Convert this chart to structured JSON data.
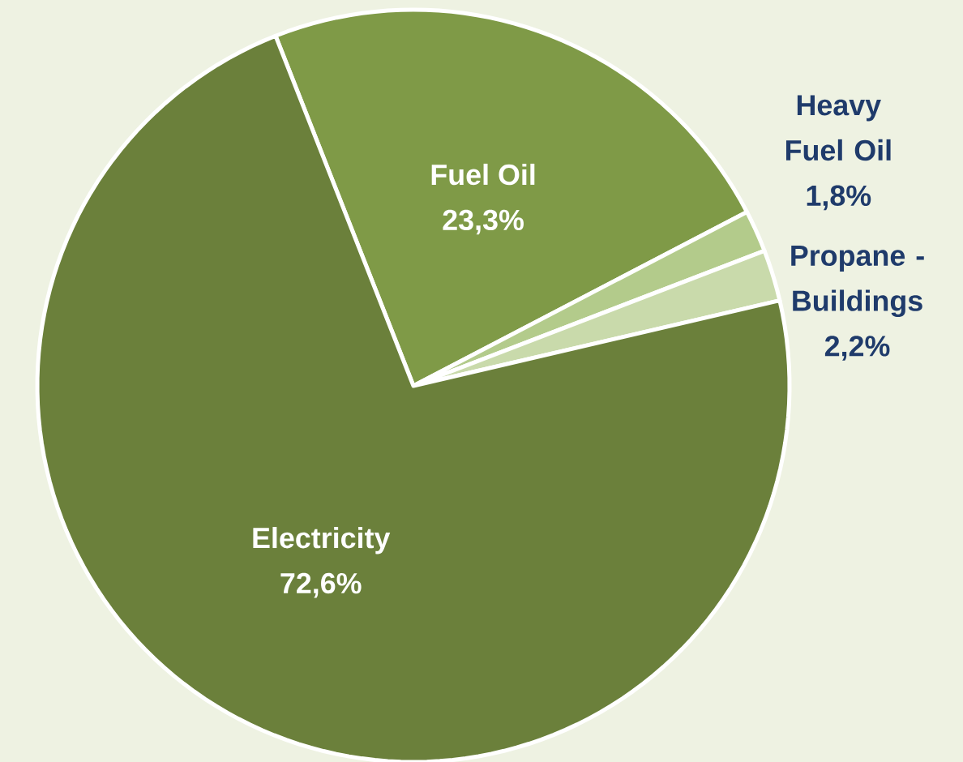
{
  "chart_data": {
    "type": "pie",
    "categories": [
      "Fuel Oil",
      "Heavy Fuel Oil",
      "Propane - Buildings",
      "Electricity"
    ],
    "values": [
      23.3,
      1.8,
      2.2,
      72.6
    ],
    "colors": [
      "#7f9a47",
      "#b3cb8b",
      "#c9daab",
      "#6b803b"
    ],
    "value_labels": [
      "23,3%",
      "1,8%",
      "2,2%",
      "72,6%"
    ]
  }
}
